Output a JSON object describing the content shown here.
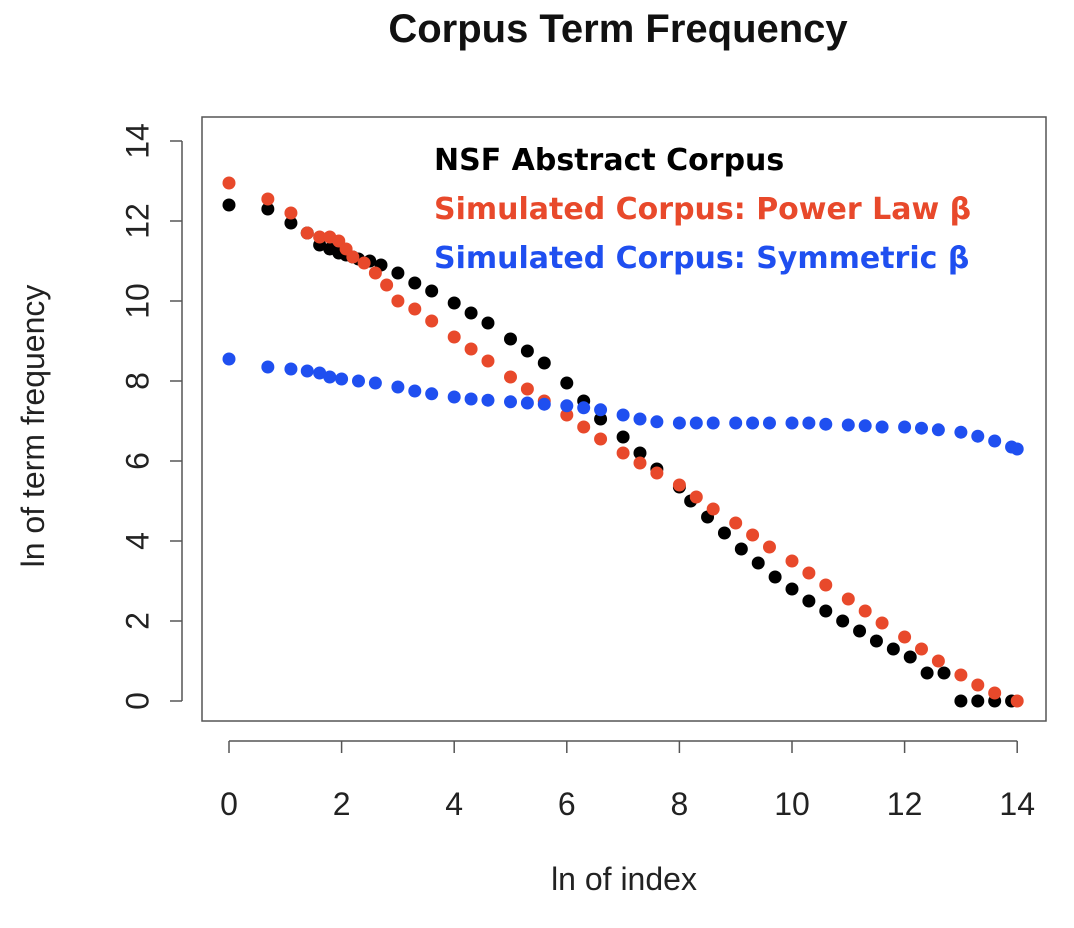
{
  "chart_data": {
    "type": "scatter",
    "title": "Corpus Term Frequency",
    "xlabel": "ln of index",
    "ylabel": "ln of term frequency",
    "xlim": [
      -0.5,
      14.5
    ],
    "ylim": [
      -0.5,
      14.5
    ],
    "xticks": [
      0,
      2,
      4,
      6,
      8,
      10,
      12,
      14
    ],
    "yticks": [
      0,
      2,
      4,
      6,
      8,
      10,
      12,
      14
    ],
    "grid": false,
    "legend_position": "top-right",
    "series": [
      {
        "name": "NSF Abstract Corpus",
        "color": "#000000",
        "points": [
          [
            0,
            12.4
          ],
          [
            0.69,
            12.3
          ],
          [
            1.1,
            11.95
          ],
          [
            1.39,
            11.7
          ],
          [
            1.61,
            11.4
          ],
          [
            1.79,
            11.3
          ],
          [
            1.95,
            11.2
          ],
          [
            2.08,
            11.15
          ],
          [
            2.2,
            11.1
          ],
          [
            2.3,
            11.05
          ],
          [
            2.5,
            11.0
          ],
          [
            2.7,
            10.9
          ],
          [
            3.0,
            10.7
          ],
          [
            3.3,
            10.45
          ],
          [
            3.6,
            10.25
          ],
          [
            4.0,
            9.95
          ],
          [
            4.3,
            9.7
          ],
          [
            4.6,
            9.45
          ],
          [
            5.0,
            9.05
          ],
          [
            5.3,
            8.75
          ],
          [
            5.6,
            8.45
          ],
          [
            6.0,
            7.95
          ],
          [
            6.3,
            7.5
          ],
          [
            6.6,
            7.05
          ],
          [
            7.0,
            6.6
          ],
          [
            7.3,
            6.2
          ],
          [
            7.6,
            5.8
          ],
          [
            8.0,
            5.35
          ],
          [
            8.2,
            5.0
          ],
          [
            8.5,
            4.6
          ],
          [
            8.8,
            4.2
          ],
          [
            9.1,
            3.8
          ],
          [
            9.4,
            3.45
          ],
          [
            9.7,
            3.1
          ],
          [
            10.0,
            2.8
          ],
          [
            10.3,
            2.5
          ],
          [
            10.6,
            2.25
          ],
          [
            10.9,
            2.0
          ],
          [
            11.2,
            1.75
          ],
          [
            11.5,
            1.5
          ],
          [
            11.8,
            1.3
          ],
          [
            12.1,
            1.1
          ],
          [
            12.4,
            0.7
          ],
          [
            12.7,
            0.7
          ],
          [
            13.0,
            0.0
          ],
          [
            13.3,
            0.0
          ],
          [
            13.6,
            0.0
          ],
          [
            13.9,
            0.0
          ]
        ]
      },
      {
        "name": "Simulated Corpus: Power Law β",
        "color": "#e8492b",
        "points": [
          [
            0,
            12.95
          ],
          [
            0.69,
            12.55
          ],
          [
            1.1,
            12.2
          ],
          [
            1.39,
            11.7
          ],
          [
            1.61,
            11.6
          ],
          [
            1.79,
            11.6
          ],
          [
            1.95,
            11.5
          ],
          [
            2.08,
            11.3
          ],
          [
            2.2,
            11.1
          ],
          [
            2.4,
            10.95
          ],
          [
            2.6,
            10.7
          ],
          [
            2.8,
            10.4
          ],
          [
            3.0,
            10.0
          ],
          [
            3.3,
            9.8
          ],
          [
            3.6,
            9.5
          ],
          [
            4.0,
            9.1
          ],
          [
            4.3,
            8.8
          ],
          [
            4.6,
            8.5
          ],
          [
            5.0,
            8.1
          ],
          [
            5.3,
            7.8
          ],
          [
            5.6,
            7.5
          ],
          [
            6.0,
            7.15
          ],
          [
            6.3,
            6.85
          ],
          [
            6.6,
            6.55
          ],
          [
            7.0,
            6.2
          ],
          [
            7.3,
            5.95
          ],
          [
            7.6,
            5.7
          ],
          [
            8.0,
            5.4
          ],
          [
            8.3,
            5.1
          ],
          [
            8.6,
            4.8
          ],
          [
            9.0,
            4.45
          ],
          [
            9.3,
            4.15
          ],
          [
            9.6,
            3.85
          ],
          [
            10.0,
            3.5
          ],
          [
            10.3,
            3.2
          ],
          [
            10.6,
            2.9
          ],
          [
            11.0,
            2.55
          ],
          [
            11.3,
            2.25
          ],
          [
            11.6,
            1.95
          ],
          [
            12.0,
            1.6
          ],
          [
            12.3,
            1.3
          ],
          [
            12.6,
            1.0
          ],
          [
            13.0,
            0.65
          ],
          [
            13.3,
            0.4
          ],
          [
            13.6,
            0.2
          ],
          [
            14.0,
            0.0
          ]
        ]
      },
      {
        "name": "Simulated Corpus: Symmetric β",
        "color": "#1f4ff0",
        "points": [
          [
            0,
            8.55
          ],
          [
            0.69,
            8.35
          ],
          [
            1.1,
            8.3
          ],
          [
            1.39,
            8.25
          ],
          [
            1.61,
            8.2
          ],
          [
            1.79,
            8.1
          ],
          [
            2.0,
            8.05
          ],
          [
            2.3,
            8.0
          ],
          [
            2.6,
            7.95
          ],
          [
            3.0,
            7.85
          ],
          [
            3.3,
            7.75
          ],
          [
            3.6,
            7.68
          ],
          [
            4.0,
            7.6
          ],
          [
            4.3,
            7.55
          ],
          [
            4.6,
            7.52
          ],
          [
            5.0,
            7.48
          ],
          [
            5.3,
            7.45
          ],
          [
            5.6,
            7.42
          ],
          [
            6.0,
            7.38
          ],
          [
            6.3,
            7.33
          ],
          [
            6.6,
            7.28
          ],
          [
            7.0,
            7.15
          ],
          [
            7.3,
            7.05
          ],
          [
            7.6,
            6.98
          ],
          [
            8.0,
            6.95
          ],
          [
            8.3,
            6.95
          ],
          [
            8.6,
            6.95
          ],
          [
            9.0,
            6.95
          ],
          [
            9.3,
            6.95
          ],
          [
            9.6,
            6.95
          ],
          [
            10.0,
            6.95
          ],
          [
            10.3,
            6.95
          ],
          [
            10.6,
            6.92
          ],
          [
            11.0,
            6.9
          ],
          [
            11.3,
            6.88
          ],
          [
            11.6,
            6.85
          ],
          [
            12.0,
            6.85
          ],
          [
            12.3,
            6.82
          ],
          [
            12.6,
            6.78
          ],
          [
            13.0,
            6.72
          ],
          [
            13.3,
            6.62
          ],
          [
            13.6,
            6.5
          ],
          [
            13.9,
            6.35
          ],
          [
            14.0,
            6.3
          ]
        ]
      }
    ]
  }
}
